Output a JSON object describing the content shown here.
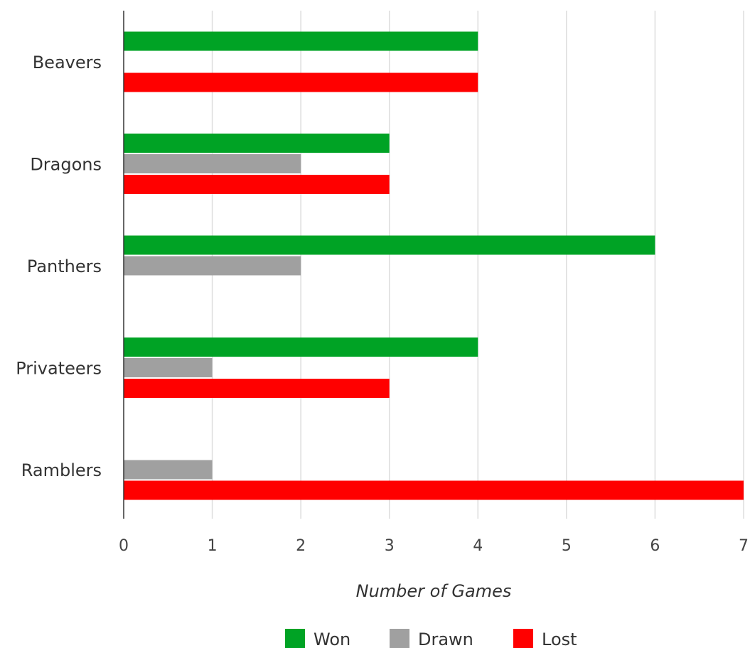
{
  "chart_data": {
    "type": "bar",
    "orientation": "horizontal",
    "title": "",
    "xlabel": "Number of Games",
    "ylabel": "",
    "xlim": [
      0,
      7
    ],
    "xticks": [
      "0",
      "1",
      "2",
      "3",
      "4",
      "5",
      "6",
      "7"
    ],
    "grid": "vertical",
    "legend_position": "bottom",
    "categories": [
      "Beavers",
      "Dragons",
      "Panthers",
      "Privateers",
      "Ramblers"
    ],
    "series": [
      {
        "name": "Won",
        "color": "#00a325",
        "values": [
          4,
          3,
          6,
          4,
          0
        ]
      },
      {
        "name": "Drawn",
        "color": "#a0a0a0",
        "values": [
          0,
          2,
          2,
          1,
          1
        ]
      },
      {
        "name": "Lost",
        "color": "#ff0000",
        "values": [
          4,
          3,
          0,
          3,
          7
        ]
      }
    ]
  }
}
